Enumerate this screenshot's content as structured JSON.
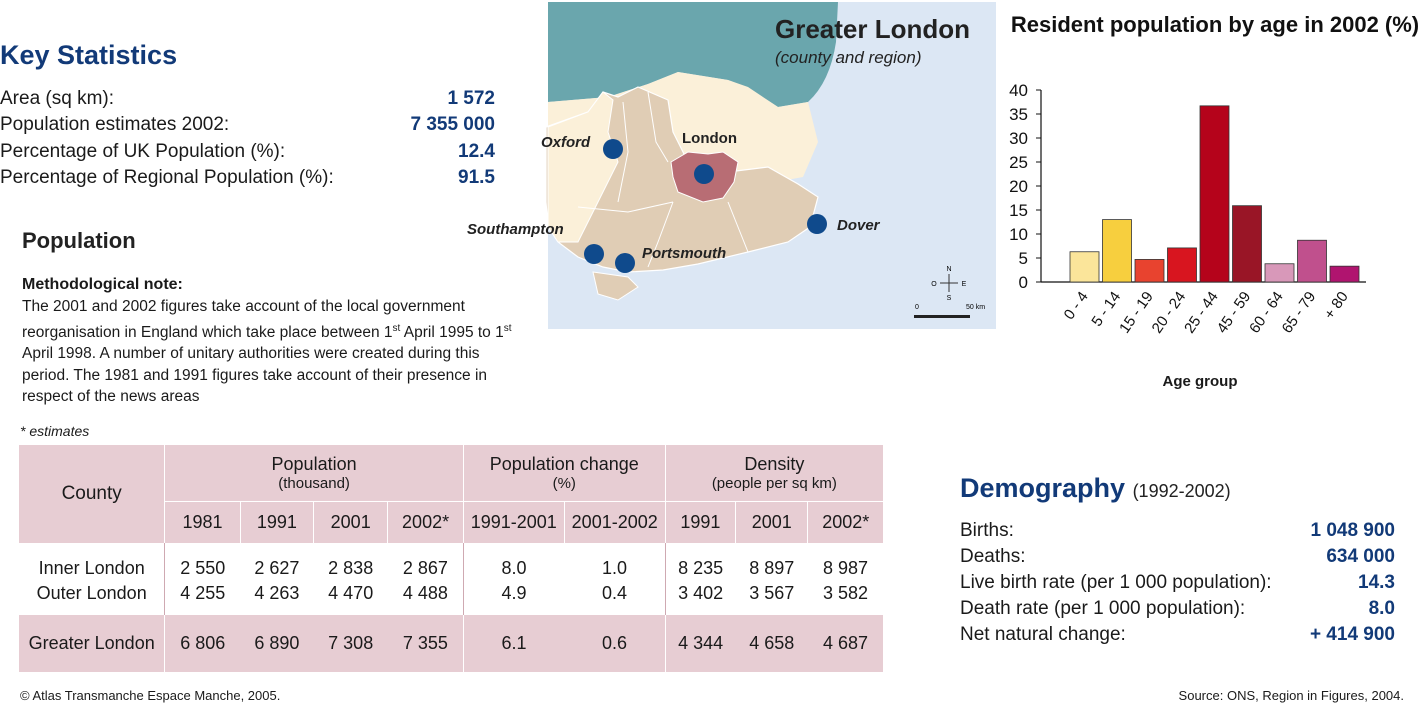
{
  "key_statistics": {
    "title": "Key Statistics",
    "rows": [
      {
        "label": "Area (sq km):",
        "value": "1 572"
      },
      {
        "label": "Population estimates 2002:",
        "value": "7 355 000"
      },
      {
        "label": "Percentage of UK Population (%):",
        "value": "12.4"
      },
      {
        "label": "Percentage of Regional Population (%):",
        "value": "91.5"
      }
    ]
  },
  "population": {
    "title": "Population",
    "method_title": "Methodological note:",
    "method_text_1": "The 2001 and 2002 figures take account of the local government reorganisation in England which take place between 1",
    "method_sup_1": "st",
    "method_text_2": " April 1995 to 1",
    "method_sup_2": "st",
    "method_text_3": " April 1998. A number of unitary authorities were created during this period. The 1981 and 1991 figures take account of their presence in respect of the news areas",
    "estimates_note": "* estimates"
  },
  "table": {
    "county_header": "County",
    "groups": [
      {
        "title": "Population",
        "sub": "(thousand)"
      },
      {
        "title": "Population change",
        "sub": "(%)"
      },
      {
        "title": "Density",
        "sub": "(people per sq km)"
      }
    ],
    "columns": [
      "1981",
      "1991",
      "2001",
      "2002*",
      "1991-2001",
      "2001-2002",
      "1991",
      "2001",
      "2002*"
    ],
    "rows": [
      {
        "county": "Inner London",
        "cells": [
          "2 550",
          "2 627",
          "2 838",
          "2 867",
          "8.0",
          "1.0",
          "8 235",
          "8 897",
          "8 987"
        ]
      },
      {
        "county": "Outer London",
        "cells": [
          "4 255",
          "4 263",
          "4 470",
          "4 488",
          "4.9",
          "0.4",
          "3 402",
          "3 567",
          "3 582"
        ]
      }
    ],
    "total": {
      "county": "Greater London",
      "cells": [
        "6 806",
        "6 890",
        "7 308",
        "7 355",
        "6.1",
        "0.6",
        "4 344",
        "4 658",
        "4 687"
      ]
    }
  },
  "map": {
    "title": "Greater London",
    "subtitle": "(county and region)",
    "cities": {
      "oxford": "Oxford",
      "london": "London",
      "southampton": "Southampton",
      "portsmouth": "Portsmouth",
      "dover": "Dover"
    },
    "compass": {
      "n": "N",
      "s": "S",
      "e": "E",
      "o": "O"
    },
    "scale": {
      "start": "0",
      "end": "50 km"
    },
    "colors": {
      "sea": "#6aa6ad",
      "region": "#e0cdb5",
      "land": "#fbf0d9",
      "london": "#b86d74",
      "dot": "#0f4a8c",
      "water_bg": "#dce7f4"
    }
  },
  "chart_data": {
    "type": "bar",
    "title": "Resident population by age in 2002 (%)",
    "xlabel": "Age group",
    "ylabel": "",
    "ylim": [
      0,
      40
    ],
    "yticks": [
      0,
      5,
      10,
      15,
      20,
      25,
      30,
      35,
      40
    ],
    "categories": [
      "0 - 4",
      "5 - 14",
      "15 - 19",
      "20 - 24",
      "25 - 44",
      "45 - 59",
      "60 - 64",
      "65 - 79",
      "+ 80"
    ],
    "values": [
      6.3,
      13.0,
      4.7,
      7.1,
      36.7,
      15.9,
      3.8,
      8.7,
      3.3
    ],
    "colors": [
      "#fbe59a",
      "#f7cf3e",
      "#e8432f",
      "#d8151f",
      "#b5031b",
      "#991526",
      "#d898b9",
      "#c0508d",
      "#b0146f"
    ],
    "grid": false,
    "legend": "none"
  },
  "demography": {
    "title": "Demography",
    "subtitle": "(1992-2002)",
    "rows": [
      {
        "label": "Births:",
        "value": "1 048 900"
      },
      {
        "label": "Deaths:",
        "value": "634 000"
      },
      {
        "label": "Live birth rate (per 1 000 population):",
        "value": "14.3"
      },
      {
        "label": "Death rate (per 1 000 population):",
        "value": "8.0"
      },
      {
        "label": "Net natural change:",
        "value": "+ 414 900"
      }
    ]
  },
  "footer": {
    "copyright": "© Atlas Transmanche Espace Manche, 2005.",
    "source": "Source: ONS, Region in Figures, 2004."
  }
}
